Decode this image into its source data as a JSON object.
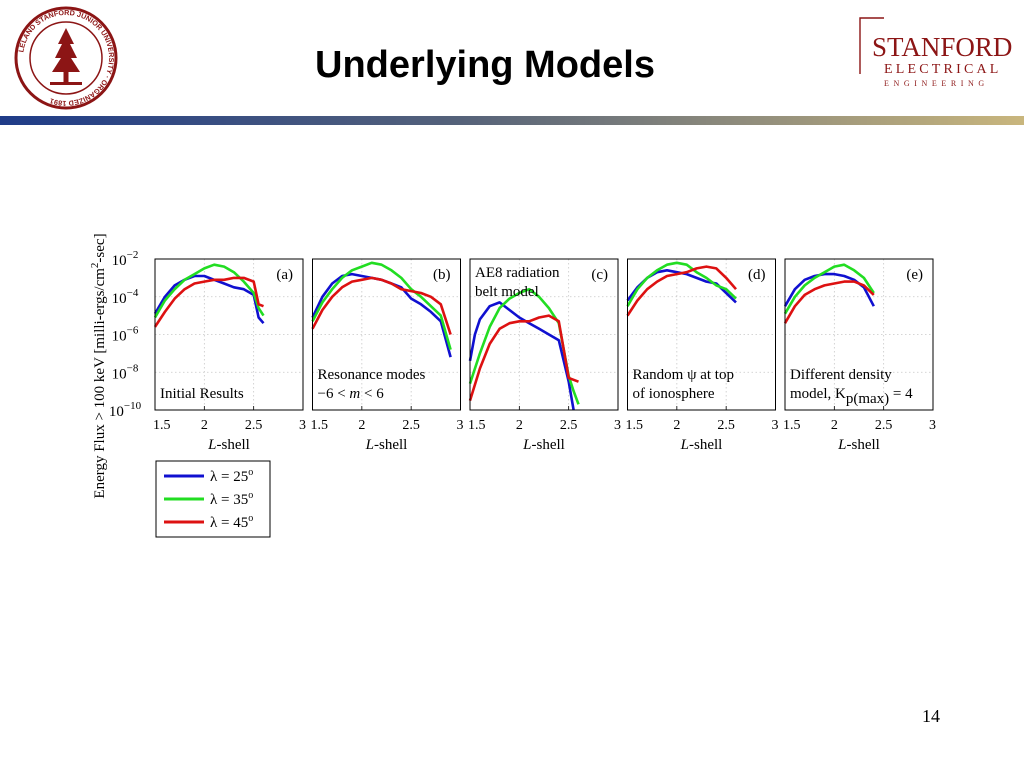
{
  "header": {
    "title": "Underlying Models",
    "seal_text": "LELAND STANFORD JUNIOR UNIVERSITY · ORGANIZED 1891",
    "brand_line1": "STANFORD",
    "brand_line2": "ELECTRICAL",
    "brand_line3": "ENGINEERING",
    "colors": {
      "stanford_red": "#8c1515",
      "band_blue": "#1f3c88",
      "band_gold": "#b8a26a"
    }
  },
  "footer": {
    "page_number": "14"
  },
  "chart_data": {
    "type": "line",
    "ylabel_main": "Energy Flux > 100 keV [milli-ergs/cm",
    "ylabel_sup": "2",
    "ylabel_end": "-sec]",
    "xlabel_italic": "L",
    "xlabel_rest": "-shell",
    "log_y": true,
    "ylim": [
      1e-10,
      0.01
    ],
    "xlim": [
      1.5,
      3
    ],
    "x_ticks": [
      "1.5",
      "2",
      "2.5",
      "3"
    ],
    "y_ticks": [
      {
        "base": "10",
        "exp": "−2"
      },
      {
        "base": "10",
        "exp": "−4"
      },
      {
        "base": "10",
        "exp": "−6"
      },
      {
        "base": "10",
        "exp": "−8"
      },
      {
        "base": "10",
        "exp": "−10"
      }
    ],
    "grid": true,
    "legend": {
      "placement": "bottom-left",
      "entries": [
        {
          "name": "λ = 25",
          "sup": "o",
          "color": "#1010d0"
        },
        {
          "name": "λ = 35",
          "sup": "o",
          "color": "#22dd22"
        },
        {
          "name": "λ = 45",
          "sup": "o",
          "color": "#dd1111"
        }
      ]
    },
    "panels": [
      {
        "tag": "(a)",
        "annotation": [
          "Initial Results"
        ],
        "annotation_pos": "bottom",
        "series": [
          {
            "name": "λ = 25°",
            "color": "#1010d0",
            "points": [
              [
                1.5,
                -4.9
              ],
              [
                1.6,
                -4.0
              ],
              [
                1.7,
                -3.4
              ],
              [
                1.8,
                -3.1
              ],
              [
                1.9,
                -2.9
              ],
              [
                2.0,
                -2.9
              ],
              [
                2.1,
                -3.1
              ],
              [
                2.2,
                -3.3
              ],
              [
                2.3,
                -3.5
              ],
              [
                2.4,
                -3.6
              ],
              [
                2.5,
                -3.9
              ],
              [
                2.55,
                -5.1
              ],
              [
                2.6,
                -5.4
              ]
            ]
          },
          {
            "name": "λ = 35°",
            "color": "#22dd22",
            "points": [
              [
                1.5,
                -5.1
              ],
              [
                1.6,
                -4.2
              ],
              [
                1.7,
                -3.6
              ],
              [
                1.8,
                -3.1
              ],
              [
                1.9,
                -2.8
              ],
              [
                2.0,
                -2.5
              ],
              [
                2.1,
                -2.3
              ],
              [
                2.2,
                -2.4
              ],
              [
                2.3,
                -2.7
              ],
              [
                2.4,
                -3.2
              ],
              [
                2.5,
                -3.8
              ],
              [
                2.55,
                -4.6
              ],
              [
                2.6,
                -5.0
              ]
            ]
          },
          {
            "name": "λ = 45°",
            "color": "#dd1111",
            "points": [
              [
                1.5,
                -5.6
              ],
              [
                1.6,
                -4.8
              ],
              [
                1.7,
                -4.1
              ],
              [
                1.8,
                -3.6
              ],
              [
                1.9,
                -3.3
              ],
              [
                2.0,
                -3.2
              ],
              [
                2.1,
                -3.1
              ],
              [
                2.2,
                -3.1
              ],
              [
                2.3,
                -3.0
              ],
              [
                2.4,
                -3.0
              ],
              [
                2.5,
                -3.2
              ],
              [
                2.55,
                -4.4
              ],
              [
                2.6,
                -4.5
              ]
            ]
          }
        ]
      },
      {
        "tag": "(b)",
        "annotation": [
          "Resonance modes",
          "−6 < m < 6"
        ],
        "annotation_pos": "bottom",
        "series": [
          {
            "name": "λ = 25°",
            "color": "#1010d0",
            "points": [
              [
                1.5,
                -5.1
              ],
              [
                1.6,
                -4.0
              ],
              [
                1.7,
                -3.3
              ],
              [
                1.8,
                -2.9
              ],
              [
                1.9,
                -2.8
              ],
              [
                2.0,
                -2.9
              ],
              [
                2.1,
                -3.0
              ],
              [
                2.2,
                -3.1
              ],
              [
                2.3,
                -3.3
              ],
              [
                2.4,
                -3.5
              ],
              [
                2.5,
                -4.1
              ],
              [
                2.6,
                -4.4
              ],
              [
                2.7,
                -4.8
              ],
              [
                2.8,
                -5.3
              ],
              [
                2.9,
                -7.2
              ]
            ]
          },
          {
            "name": "λ = 35°",
            "color": "#22dd22",
            "points": [
              [
                1.5,
                -5.3
              ],
              [
                1.6,
                -4.3
              ],
              [
                1.7,
                -3.6
              ],
              [
                1.8,
                -3.0
              ],
              [
                1.9,
                -2.6
              ],
              [
                2.0,
                -2.4
              ],
              [
                2.1,
                -2.2
              ],
              [
                2.2,
                -2.3
              ],
              [
                2.3,
                -2.6
              ],
              [
                2.4,
                -3.0
              ],
              [
                2.5,
                -3.6
              ],
              [
                2.6,
                -4.0
              ],
              [
                2.7,
                -4.5
              ],
              [
                2.8,
                -5.0
              ],
              [
                2.9,
                -6.8
              ]
            ]
          },
          {
            "name": "λ = 45°",
            "color": "#dd1111",
            "points": [
              [
                1.5,
                -5.7
              ],
              [
                1.6,
                -4.7
              ],
              [
                1.7,
                -4.0
              ],
              [
                1.8,
                -3.5
              ],
              [
                1.9,
                -3.2
              ],
              [
                2.0,
                -3.1
              ],
              [
                2.1,
                -3.0
              ],
              [
                2.2,
                -3.1
              ],
              [
                2.3,
                -3.3
              ],
              [
                2.4,
                -3.6
              ],
              [
                2.5,
                -3.7
              ],
              [
                2.6,
                -3.8
              ],
              [
                2.7,
                -4.0
              ],
              [
                2.8,
                -4.4
              ],
              [
                2.9,
                -6.0
              ]
            ]
          }
        ]
      },
      {
        "tag": "(c)",
        "annotation": [
          "AE8 radiation",
          "belt model"
        ],
        "annotation_pos": "top",
        "series": [
          {
            "name": "λ = 25°",
            "color": "#1010d0",
            "points": [
              [
                1.5,
                -7.4
              ],
              [
                1.55,
                -6.0
              ],
              [
                1.6,
                -5.2
              ],
              [
                1.7,
                -4.5
              ],
              [
                1.8,
                -4.3
              ],
              [
                1.9,
                -4.7
              ],
              [
                2.0,
                -5.1
              ],
              [
                2.1,
                -5.4
              ],
              [
                2.2,
                -5.7
              ],
              [
                2.3,
                -6.0
              ],
              [
                2.4,
                -6.3
              ],
              [
                2.5,
                -8.5
              ],
              [
                2.55,
                -10.0
              ]
            ]
          },
          {
            "name": "λ = 35°",
            "color": "#22dd22",
            "points": [
              [
                1.5,
                -8.6
              ],
              [
                1.6,
                -7.0
              ],
              [
                1.7,
                -5.6
              ],
              [
                1.8,
                -4.6
              ],
              [
                1.9,
                -4.1
              ],
              [
                2.0,
                -3.8
              ],
              [
                2.1,
                -3.6
              ],
              [
                2.2,
                -4.0
              ],
              [
                2.3,
                -4.6
              ],
              [
                2.4,
                -5.4
              ],
              [
                2.5,
                -8.2
              ],
              [
                2.55,
                -9.0
              ],
              [
                2.6,
                -9.7
              ]
            ]
          },
          {
            "name": "λ = 45°",
            "color": "#dd1111",
            "points": [
              [
                1.5,
                -9.5
              ],
              [
                1.6,
                -7.8
              ],
              [
                1.7,
                -6.5
              ],
              [
                1.8,
                -5.7
              ],
              [
                1.9,
                -5.4
              ],
              [
                2.0,
                -5.3
              ],
              [
                2.1,
                -5.3
              ],
              [
                2.2,
                -5.1
              ],
              [
                2.3,
                -5.0
              ],
              [
                2.4,
                -5.3
              ],
              [
                2.5,
                -8.3
              ],
              [
                2.6,
                -8.5
              ]
            ]
          }
        ]
      },
      {
        "tag": "(d)",
        "annotation": [
          "Random ψ at top",
          "of ionosphere"
        ],
        "annotation_pos": "bottom",
        "series": [
          {
            "name": "λ = 25°",
            "color": "#1010d0",
            "points": [
              [
                1.5,
                -4.2
              ],
              [
                1.6,
                -3.5
              ],
              [
                1.7,
                -3.0
              ],
              [
                1.8,
                -2.7
              ],
              [
                1.9,
                -2.6
              ],
              [
                2.0,
                -2.7
              ],
              [
                2.1,
                -2.8
              ],
              [
                2.2,
                -3.0
              ],
              [
                2.3,
                -3.2
              ],
              [
                2.4,
                -3.3
              ],
              [
                2.5,
                -3.8
              ],
              [
                2.6,
                -4.3
              ]
            ]
          },
          {
            "name": "λ = 35°",
            "color": "#22dd22",
            "points": [
              [
                1.5,
                -4.5
              ],
              [
                1.6,
                -3.6
              ],
              [
                1.7,
                -3.0
              ],
              [
                1.8,
                -2.6
              ],
              [
                1.9,
                -2.3
              ],
              [
                2.0,
                -2.2
              ],
              [
                2.1,
                -2.3
              ],
              [
                2.2,
                -2.7
              ],
              [
                2.3,
                -3.0
              ],
              [
                2.4,
                -3.4
              ],
              [
                2.5,
                -3.6
              ],
              [
                2.6,
                -4.1
              ]
            ]
          },
          {
            "name": "λ = 45°",
            "color": "#dd1111",
            "points": [
              [
                1.5,
                -5.0
              ],
              [
                1.6,
                -4.2
              ],
              [
                1.7,
                -3.6
              ],
              [
                1.8,
                -3.2
              ],
              [
                1.9,
                -2.9
              ],
              [
                2.0,
                -2.8
              ],
              [
                2.1,
                -2.7
              ],
              [
                2.2,
                -2.5
              ],
              [
                2.3,
                -2.4
              ],
              [
                2.4,
                -2.5
              ],
              [
                2.5,
                -3.0
              ],
              [
                2.6,
                -3.6
              ]
            ]
          }
        ]
      },
      {
        "tag": "(e)",
        "annotation": [
          "Different density",
          "model, Kp(max) = 4"
        ],
        "annotation_pos": "bottom",
        "series": [
          {
            "name": "λ = 25°",
            "color": "#1010d0",
            "points": [
              [
                1.5,
                -4.5
              ],
              [
                1.6,
                -3.6
              ],
              [
                1.7,
                -3.1
              ],
              [
                1.8,
                -2.9
              ],
              [
                1.9,
                -2.8
              ],
              [
                2.0,
                -2.8
              ],
              [
                2.1,
                -2.9
              ],
              [
                2.2,
                -3.1
              ],
              [
                2.3,
                -3.5
              ],
              [
                2.4,
                -4.5
              ]
            ]
          },
          {
            "name": "λ = 35°",
            "color": "#22dd22",
            "points": [
              [
                1.5,
                -4.9
              ],
              [
                1.6,
                -4.0
              ],
              [
                1.7,
                -3.4
              ],
              [
                1.8,
                -3.0
              ],
              [
                1.9,
                -2.7
              ],
              [
                2.0,
                -2.4
              ],
              [
                2.1,
                -2.3
              ],
              [
                2.2,
                -2.6
              ],
              [
                2.3,
                -3.0
              ],
              [
                2.4,
                -3.8
              ]
            ]
          },
          {
            "name": "λ = 45°",
            "color": "#dd1111",
            "points": [
              [
                1.5,
                -5.4
              ],
              [
                1.6,
                -4.5
              ],
              [
                1.7,
                -3.9
              ],
              [
                1.8,
                -3.6
              ],
              [
                1.9,
                -3.4
              ],
              [
                2.0,
                -3.3
              ],
              [
                2.1,
                -3.2
              ],
              [
                2.2,
                -3.2
              ],
              [
                2.3,
                -3.4
              ],
              [
                2.4,
                -3.9
              ]
            ]
          }
        ]
      }
    ]
  }
}
